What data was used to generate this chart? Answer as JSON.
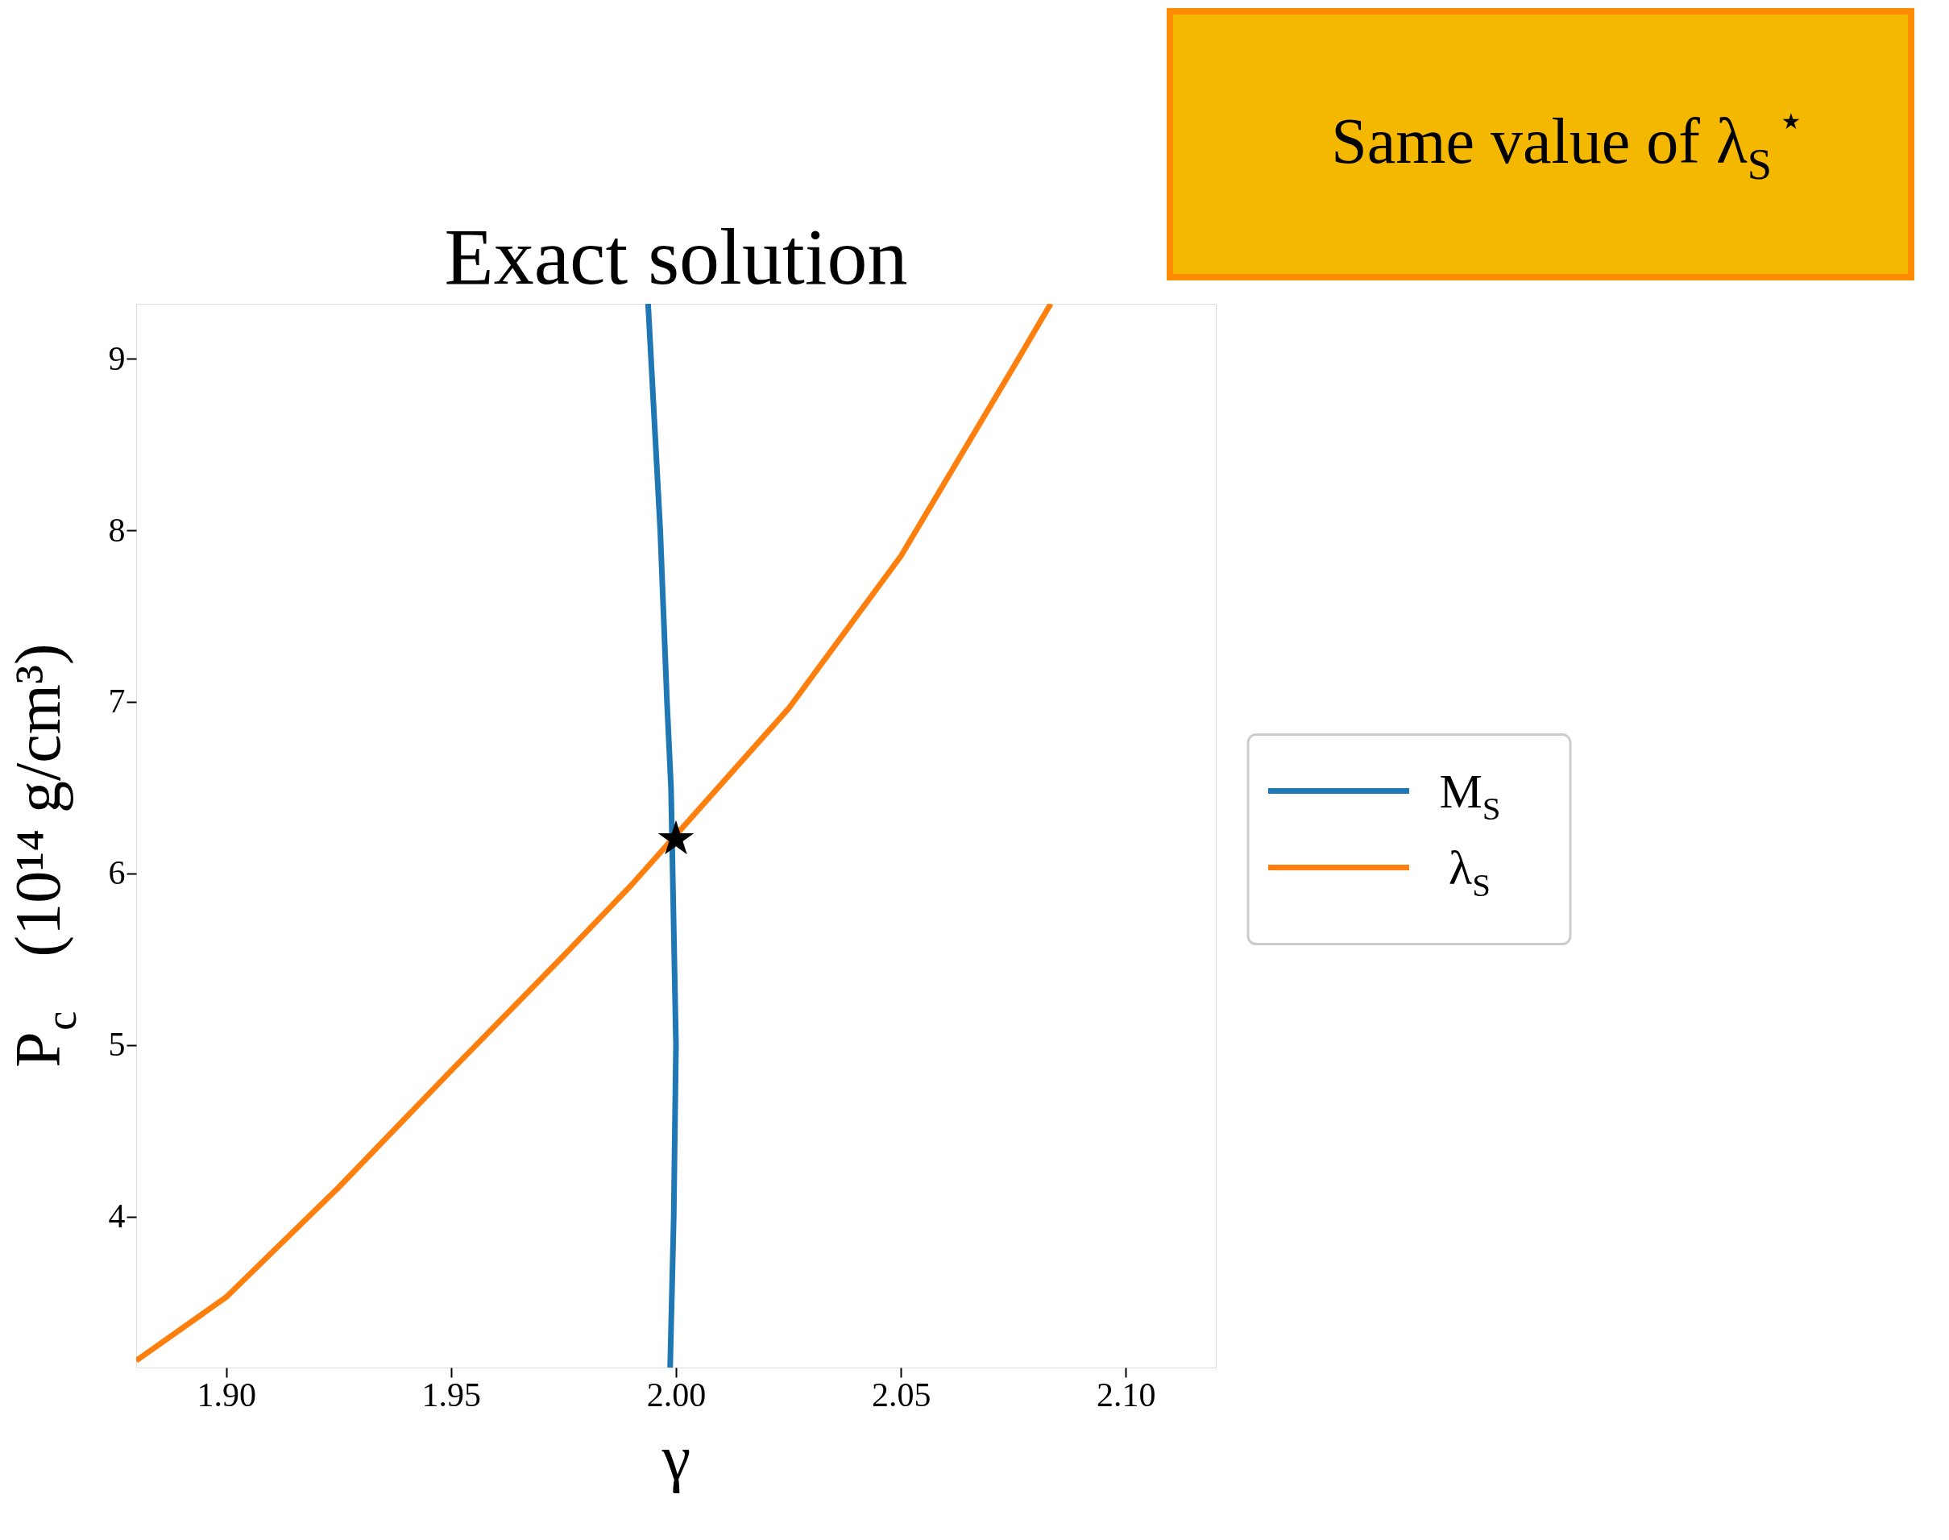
{
  "chart_data": {
    "type": "line",
    "title": "Exact solution",
    "xlabel": "γ",
    "ylabel": "P$_{c}$  (10¹⁴ g/cm³)",
    "xlim": [
      1.88,
      2.12
    ],
    "ylim": [
      3.12,
      9.32
    ],
    "xticks": [
      {
        "value": 1.9,
        "label": "1.90"
      },
      {
        "value": 1.95,
        "label": "1.95"
      },
      {
        "value": 2.0,
        "label": "2.00"
      },
      {
        "value": 2.05,
        "label": "2.05"
      },
      {
        "value": 2.1,
        "label": "2.10"
      }
    ],
    "yticks": [
      4,
      5,
      6,
      7,
      8,
      9
    ],
    "legend": "right",
    "series": [
      {
        "name": "M$_{S}$",
        "color": "#1f77b4",
        "x": [
          1.9938,
          1.9965,
          1.998,
          1.9989,
          2.0,
          1.9995,
          1.9987
        ],
        "values": [
          9.32,
          8,
          7,
          6.5,
          5,
          4,
          3.12
        ]
      },
      {
        "name": "λ$_{S}$",
        "color": "#ff7f0e",
        "x": [
          1.88,
          1.9,
          1.925,
          1.95,
          1.975,
          1.99,
          2.025,
          2.05,
          2.075,
          2.0833
        ],
        "values": [
          3.16,
          3.53,
          4.17,
          4.85,
          5.52,
          5.93,
          6.96,
          7.85,
          8.95,
          9.32
        ]
      },
      {
        "type": "scatter",
        "marker": "star",
        "color": "#000000",
        "x": [
          2.0
        ],
        "values": [
          6.2
        ]
      }
    ],
    "annotations": [
      "Same value of λ$_{S}$$^{⋆}$"
    ]
  }
}
